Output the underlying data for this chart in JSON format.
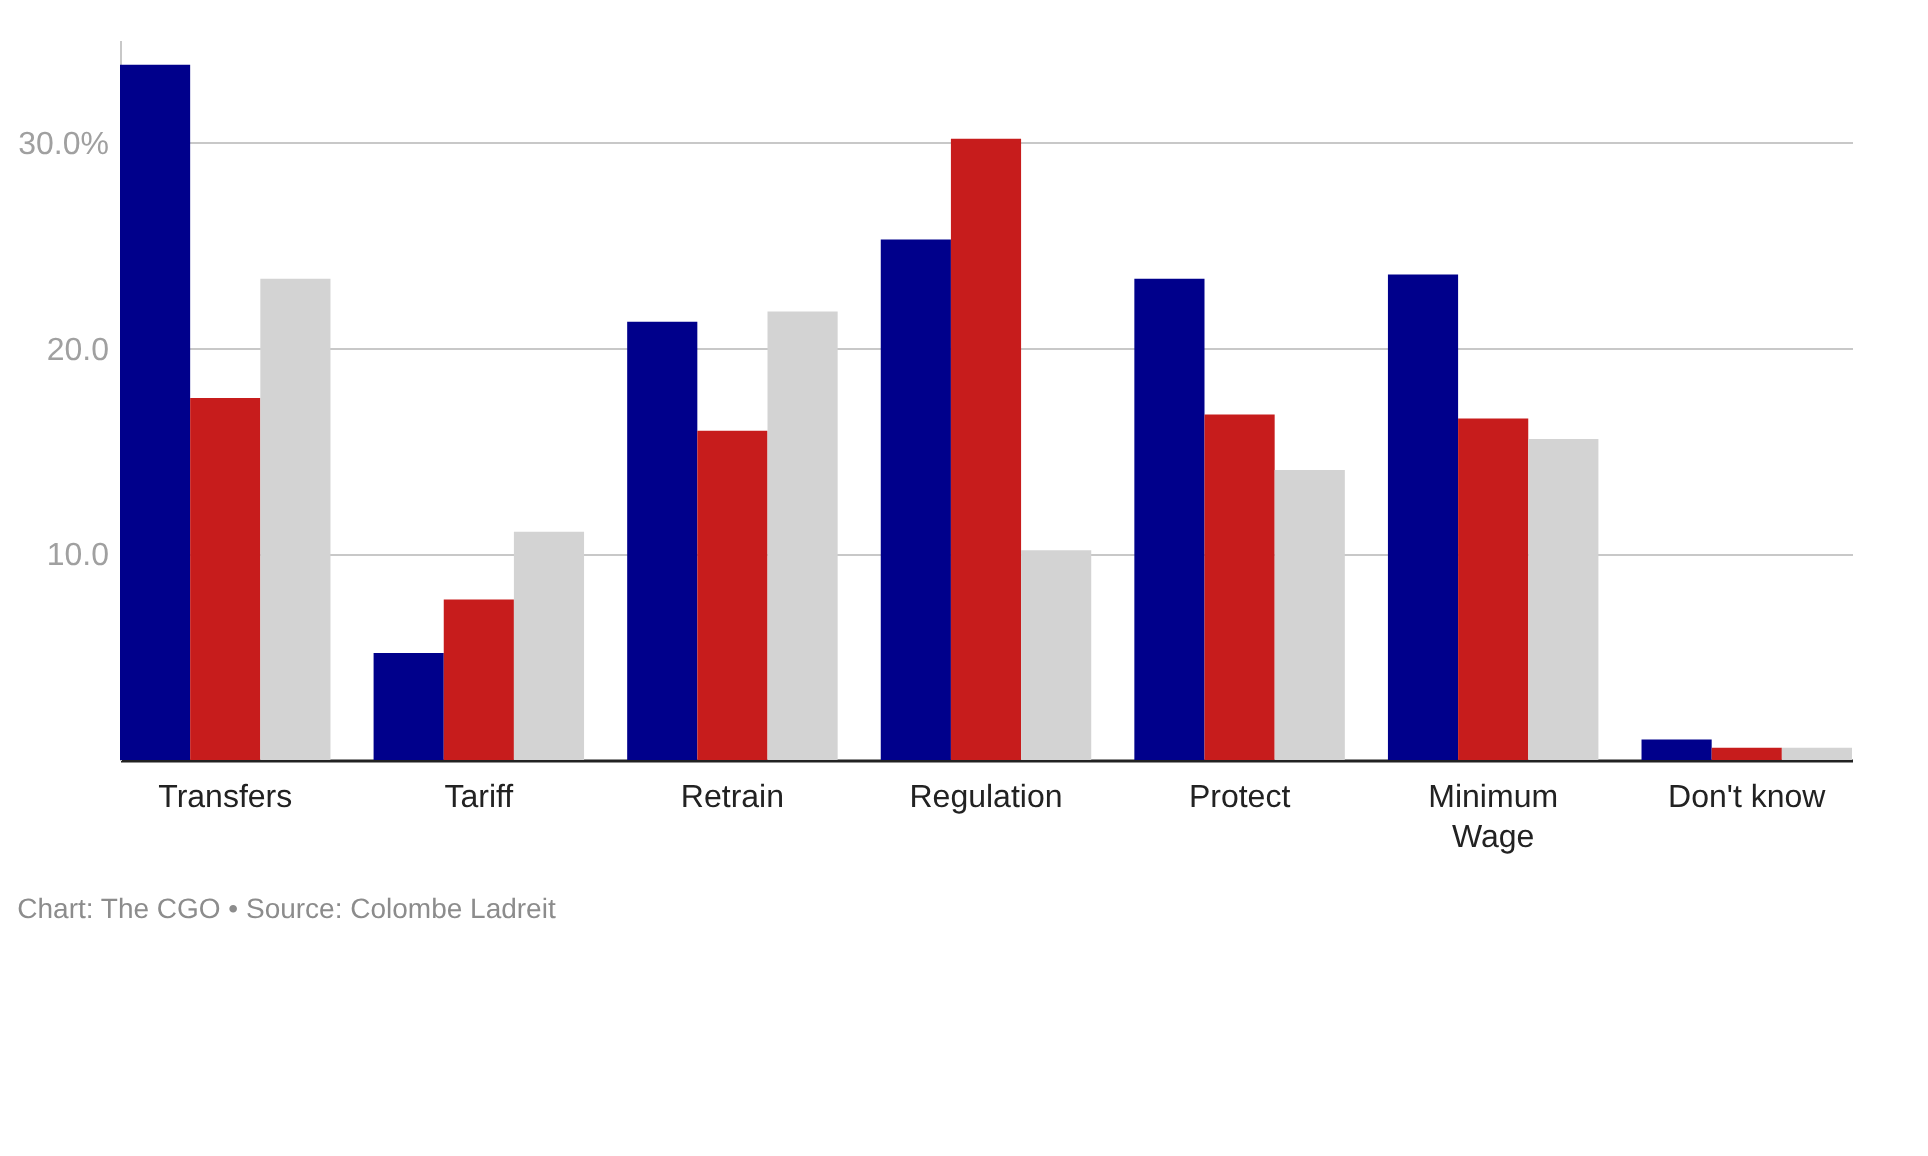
{
  "chart_data": {
    "type": "bar",
    "categories": [
      "Transfers",
      "Tariff",
      "Retrain",
      "Regulation",
      "Protect",
      "Minimum Wage",
      "Don't know"
    ],
    "series": [
      {
        "color": "#00008b",
        "values": [
          33.8,
          5.2,
          21.3,
          25.3,
          23.4,
          23.6,
          1.0
        ]
      },
      {
        "color": "#c71c1c",
        "values": [
          17.6,
          7.8,
          16.0,
          30.2,
          16.8,
          16.6,
          0.6
        ]
      },
      {
        "color": "#d3d3d3",
        "values": [
          23.4,
          11.1,
          21.8,
          10.2,
          14.1,
          15.6,
          0.6
        ]
      }
    ],
    "ylim": [
      0,
      35
    ],
    "yticks": [
      {
        "value": 10,
        "label": "10.0"
      },
      {
        "value": 20,
        "label": "20.0"
      },
      {
        "value": 30,
        "label": "30.0%"
      }
    ],
    "grid": "y",
    "annotations": [
      "Chart: The CGO • Source: Colombe Ladreit"
    ]
  }
}
